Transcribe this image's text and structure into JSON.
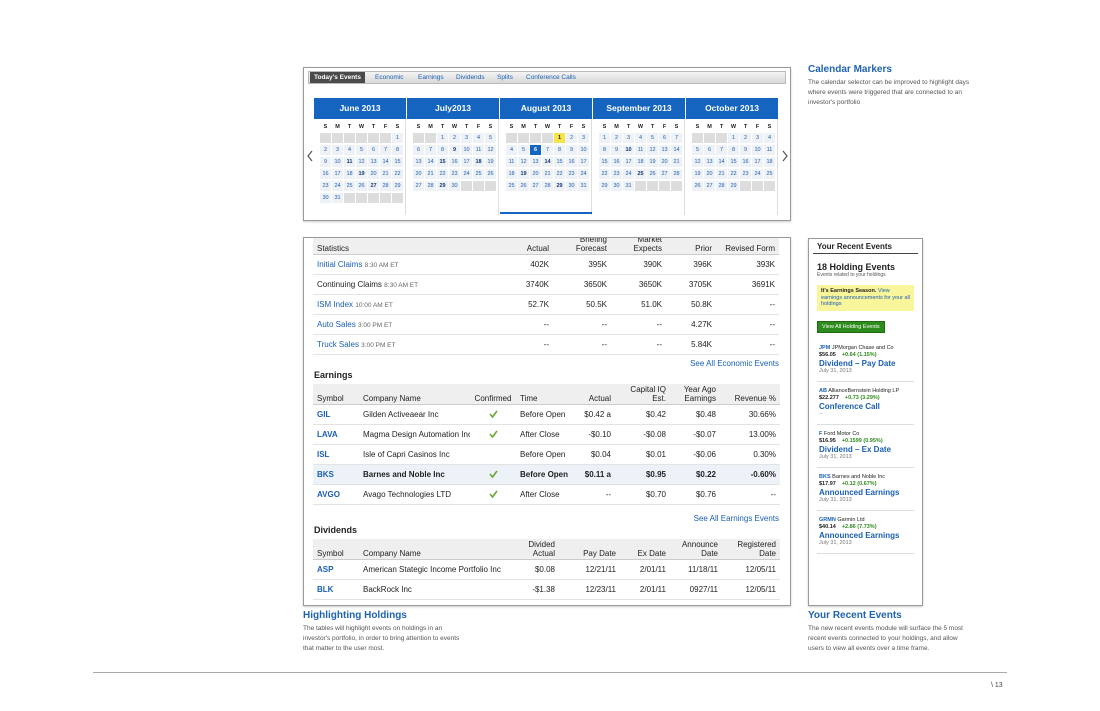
{
  "calendar": {
    "tabs": [
      "Today's Events",
      "Economic",
      "Earnings",
      "Dividends",
      "Splits",
      "Conference Calls"
    ],
    "weekdays": [
      "S",
      "M",
      "T",
      "W",
      "T",
      "F",
      "S"
    ],
    "months": [
      {
        "name": "June 2013",
        "bold": [
          11,
          19,
          27
        ],
        "weeks": [
          [
            null,
            null,
            null,
            null,
            null,
            null,
            1
          ],
          [
            2,
            3,
            4,
            5,
            6,
            7,
            8
          ],
          [
            9,
            10,
            11,
            12,
            13,
            14,
            15
          ],
          [
            16,
            17,
            18,
            19,
            20,
            21,
            22
          ],
          [
            23,
            24,
            25,
            26,
            27,
            28,
            29
          ],
          [
            30,
            31,
            null,
            null,
            null,
            null,
            null
          ]
        ]
      },
      {
        "name": "July2013",
        "bold": [
          9,
          15,
          18,
          29
        ],
        "weeks": [
          [
            null,
            null,
            1,
            2,
            3,
            4,
            5
          ],
          [
            6,
            7,
            8,
            9,
            10,
            11,
            12
          ],
          [
            13,
            14,
            15,
            16,
            17,
            18,
            19
          ],
          [
            20,
            21,
            22,
            23,
            24,
            25,
            26
          ],
          [
            27,
            28,
            29,
            30,
            null,
            null,
            null
          ]
        ]
      },
      {
        "name": "August 2013",
        "bold": [
          14,
          19,
          29
        ],
        "flagged": 1,
        "selected": 6,
        "current": true,
        "weeks": [
          [
            null,
            null,
            null,
            null,
            1,
            2,
            3
          ],
          [
            4,
            5,
            6,
            7,
            8,
            9,
            10
          ],
          [
            11,
            12,
            13,
            14,
            15,
            16,
            17
          ],
          [
            18,
            19,
            20,
            21,
            22,
            23,
            24
          ],
          [
            25,
            26,
            27,
            28,
            29,
            30,
            31
          ]
        ]
      },
      {
        "name": "September 2013",
        "bold": [
          10,
          25
        ],
        "weeks": [
          [
            1,
            2,
            3,
            4,
            5,
            6,
            7
          ],
          [
            8,
            9,
            10,
            11,
            12,
            13,
            14
          ],
          [
            15,
            16,
            17,
            18,
            19,
            20,
            21
          ],
          [
            22,
            23,
            24,
            25,
            26,
            27,
            28
          ],
          [
            29,
            30,
            31,
            null,
            null,
            null,
            null
          ]
        ]
      },
      {
        "name": "October 2013",
        "bold": [],
        "weeks": [
          [
            null,
            null,
            null,
            1,
            2,
            3,
            4
          ],
          [
            5,
            6,
            7,
            8,
            9,
            10,
            11
          ],
          [
            12,
            13,
            14,
            15,
            16,
            17,
            18
          ],
          [
            19,
            20,
            21,
            22,
            23,
            24,
            25
          ],
          [
            26,
            27,
            28,
            29,
            null,
            null,
            null
          ]
        ]
      }
    ]
  },
  "economic": {
    "columns": [
      "Statistics",
      "Actual",
      "Briefing Forecast",
      "Market Expects",
      "Prior",
      "Revised Form"
    ],
    "rows": [
      {
        "name": "Initial Claims",
        "time": "8:30 AM ET",
        "link": true,
        "cells": [
          "402K",
          "395K",
          "390K",
          "396K",
          "393K"
        ]
      },
      {
        "name": "Continuing Claims",
        "time": "8:30 AM ET",
        "link": false,
        "cells": [
          "3740K",
          "3650K",
          "3650K",
          "3705K",
          "3691K"
        ]
      },
      {
        "name": "ISM Index",
        "time": "10:00 AM ET",
        "link": true,
        "cells": [
          "52.7K",
          "50.5K",
          "51.0K",
          "50.8K",
          "--"
        ]
      },
      {
        "name": "Auto Sales",
        "time": "3:00 PM ET",
        "link": true,
        "cells": [
          "--",
          "--",
          "--",
          "4.27K",
          "--"
        ]
      },
      {
        "name": "Truck Sales",
        "time": "3:00 PM ET",
        "link": true,
        "cells": [
          "--",
          "--",
          "--",
          "5.84K",
          "--"
        ]
      }
    ],
    "see_all": "See All Economic Events"
  },
  "earnings": {
    "title": "Earnings",
    "columns": [
      "Symbol",
      "Company Name",
      "Confirmed",
      "Time",
      "Actual",
      "Capital IQ Est.",
      "Year Ago Earnings",
      "Revenue %"
    ],
    "rows": [
      {
        "symbol": "GIL",
        "company": "Gilden Activeaear Inc",
        "confirmed": true,
        "cells": [
          "Before Open",
          "$0.42 a",
          "$0.42",
          "$0.48",
          "30.66%"
        ]
      },
      {
        "symbol": "LAVA",
        "company": "Magma Design Automation Inc",
        "confirmed": true,
        "cells": [
          "After Close",
          "-$0.10",
          "-$0.08",
          "-$0.07",
          "13.00%"
        ]
      },
      {
        "symbol": "ISL",
        "company": "Isle of Capri Casinos Inc",
        "confirmed": false,
        "cells": [
          "Before Open",
          "$0.04",
          "$0.01",
          "-$0.06",
          "0.30%"
        ]
      },
      {
        "symbol": "BKS",
        "company": "Barnes and Noble Inc",
        "confirmed": true,
        "highlight": true,
        "cells": [
          "Before Open",
          "$0.11 a",
          "$0.95",
          "$0.22",
          "-0.60%"
        ]
      },
      {
        "symbol": "AVGO",
        "company": "Avago Technologies LTD",
        "confirmed": true,
        "cells": [
          "After Close",
          "--",
          "$0.70",
          "$0.76",
          "--"
        ]
      }
    ],
    "see_all": "See All Earnings Events"
  },
  "dividends": {
    "title": "Dividends",
    "columns": [
      "Symbol",
      "Company Name",
      "Divided Actual",
      "Pay Date",
      "Ex Date",
      "Announce Date",
      "Registered Date"
    ],
    "rows": [
      {
        "symbol": "ASP",
        "company": "American Stategic Income Portfolio Inc",
        "cells": [
          "$0.08",
          "12/21/11",
          "2/01/11",
          "11/18/11",
          "12/05/11"
        ]
      },
      {
        "symbol": "BLK",
        "company": "BackRock Inc",
        "cells": [
          "-$1.38",
          "12/23/11",
          "2/01/11",
          "0927/11",
          "12/05/11"
        ]
      }
    ]
  },
  "recent": {
    "title": "Your Recent Events",
    "count_title": "18 Holding Events",
    "subtitle": "Events related to your holdings",
    "notice_bold": "It's Earnings Season.",
    "notice_link": "View earnings announcements for your all holdings",
    "button": "View All Holding Events",
    "events": [
      {
        "symbol": "JPM",
        "company": "JPMorgan Chase and Co",
        "price": "$56.05",
        "change": "+0.64 (1.15%)",
        "event": "Dividend – Pay Date",
        "date": "July 31, 2013"
      },
      {
        "symbol": "AB",
        "company": "AllianceBernstein Holding LP",
        "price": "$22.277",
        "change": "+0.73 (3.29%)",
        "event": "Conference Call",
        "date": "--"
      },
      {
        "symbol": "F",
        "company": "Ford Motor Co",
        "price": "$16.95",
        "change": "+0.1599 (0.95%)",
        "event": "Dividend – Ex Date",
        "date": "July 31, 2013"
      },
      {
        "symbol": "BKS",
        "company": "Barnes and Noble Inc",
        "price": "$17.97",
        "change": "+0.12 (0.67%)",
        "event": "Announced Earnings",
        "date": "July 31, 2013"
      },
      {
        "symbol": "GRMN",
        "company": "Garmin Ltd",
        "price": "$40.14",
        "change": "+2.86 (7.73%)",
        "event": "Announced Earnings",
        "date": "July 31, 2013"
      }
    ]
  },
  "notes": [
    {
      "title": "Calendar Markers",
      "text": "The calendar selector can be improved to highlight days where events were triggered that are connected to an investor's portfolio"
    },
    {
      "title": "Highlighting Holdings",
      "text": "The tables will highlight events on holdings in an investor's portfolio, in order to bring attention to events that matter to the user most."
    },
    {
      "title": "Your Recent Events",
      "text": "The new recent events module will surface the 5 most recent events connected to your holdings, and allow users to view all events over a time frame."
    }
  ],
  "page_number": "\\ 13"
}
